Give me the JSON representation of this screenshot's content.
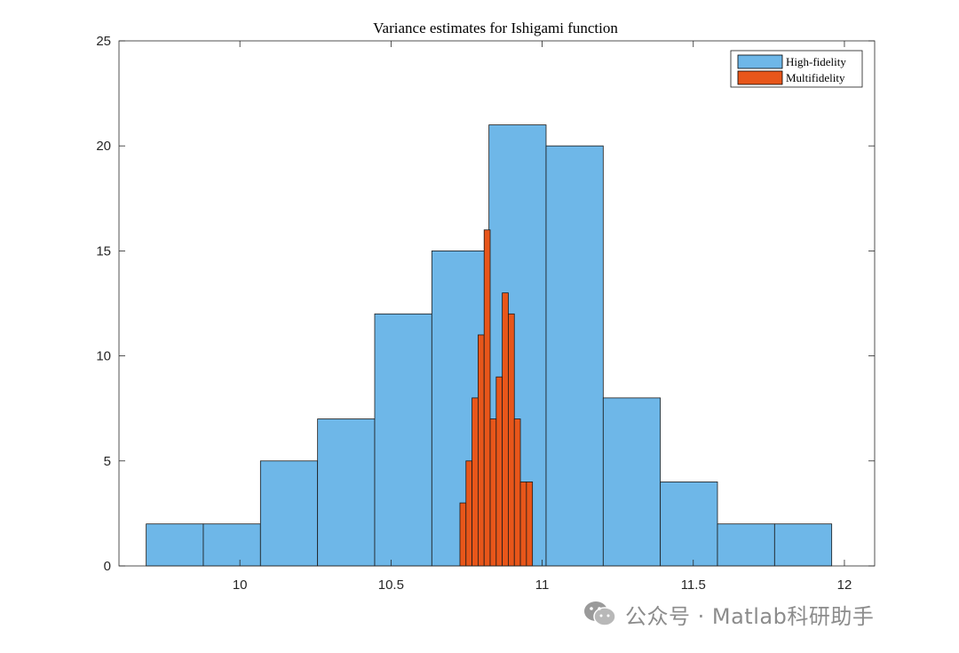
{
  "chart_data": {
    "type": "histogram",
    "title": "Variance estimates for Ishigami function",
    "xlabel": "",
    "ylabel": "",
    "xlim": [
      9.6,
      12.1
    ],
    "ylim": [
      0,
      25
    ],
    "xticks": [
      10,
      10.5,
      11,
      11.5,
      12
    ],
    "xtick_labels": [
      "10",
      "10.5",
      "11",
      "11.5",
      "12"
    ],
    "yticks": [
      0,
      5,
      10,
      15,
      20,
      25
    ],
    "ytick_labels": [
      "0",
      "5",
      "10",
      "15",
      "20",
      "25"
    ],
    "grid": false,
    "legend_position": "top-right",
    "series": [
      {
        "name": "High-fidelity",
        "color": "#6EB7E8",
        "bin_edges": [
          9.69,
          9.879,
          10.068,
          10.257,
          10.446,
          10.635,
          10.824,
          11.013,
          11.202,
          11.391,
          11.58,
          11.769,
          11.958
        ],
        "counts": [
          2,
          2,
          5,
          7,
          12,
          15,
          21,
          20,
          8,
          4,
          2,
          2
        ]
      },
      {
        "name": "Multifidelity",
        "color": "#E8561A",
        "bin_edges": [
          10.728,
          10.748,
          10.768,
          10.788,
          10.808,
          10.828,
          10.848,
          10.868,
          10.888,
          10.908,
          10.928,
          10.948,
          10.968
        ],
        "counts": [
          3,
          5,
          8,
          11,
          16,
          7,
          9,
          13,
          12,
          7,
          4,
          4
        ]
      }
    ]
  },
  "watermark": {
    "icon": "wechat-icon",
    "text": "公众号 · Matlab科研助手"
  }
}
